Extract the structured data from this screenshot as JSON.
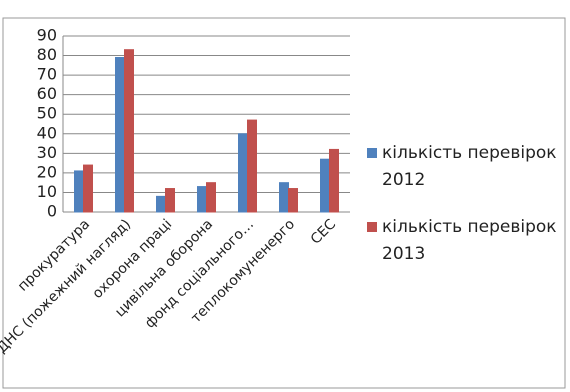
{
  "chart_data": {
    "type": "bar",
    "categories": [
      "прокуратура",
      "ДНС (пожежний нагляд)",
      "охорона праці",
      "цивільна оборона",
      "фонд соціального…",
      "теплокомуненерго",
      "СЕС"
    ],
    "series": [
      {
        "name": "кількість перевірок 2012",
        "color": "#4f81bd",
        "values": [
          21,
          79,
          8,
          13,
          40,
          15,
          27
        ]
      },
      {
        "name": "кількість перевірок 2013",
        "color": "#c0504d",
        "values": [
          24,
          83,
          12,
          15,
          47,
          12,
          32
        ]
      }
    ],
    "ylim": [
      0,
      90
    ],
    "yticks": [
      0,
      10,
      20,
      30,
      40,
      50,
      60,
      70,
      80,
      90
    ],
    "grid": true,
    "legend": "right"
  }
}
